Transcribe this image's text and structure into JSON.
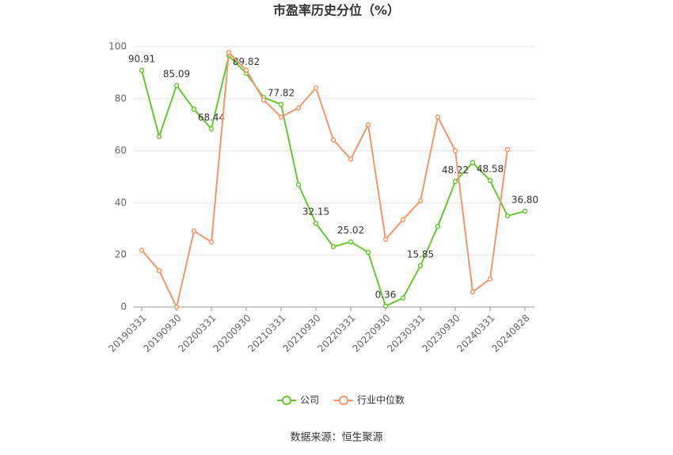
{
  "chart_data": {
    "type": "line",
    "title": "市盈率历史分位（%）",
    "source": "数据来源：恒生聚源",
    "categories": [
      "20190331",
      null,
      "20190930",
      null,
      "20200331",
      null,
      "20200930",
      null,
      "20210331",
      null,
      "20210930",
      null,
      "20220331",
      null,
      "20220930",
      null,
      "20230331",
      null,
      "20230930",
      null,
      "20240331",
      null,
      "20240828"
    ],
    "series": [
      {
        "name": "公司",
        "color": "#66c72f",
        "values": [
          90.91,
          65.5,
          85.09,
          76,
          68.44,
          96.5,
          89.82,
          80.5,
          77.82,
          47,
          32.15,
          23.2,
          25.02,
          21,
          0.36,
          3.5,
          15.85,
          31,
          48.22,
          55.5,
          48.58,
          35,
          36.8
        ],
        "value_labels": [
          "90.91",
          null,
          "85.09",
          null,
          "68.44",
          null,
          "89.82",
          null,
          "77.82",
          null,
          "32.15",
          null,
          "25.02",
          null,
          "0.36",
          null,
          "15.85",
          null,
          "48.22",
          null,
          "48.58",
          null,
          "36.80"
        ]
      },
      {
        "name": "行业中位数",
        "color": "#f4956a",
        "values": [
          21.8,
          14,
          0,
          29.2,
          25,
          97.8,
          91,
          79.5,
          73,
          76.5,
          84.2,
          64.2,
          56.8,
          70,
          26,
          33.6,
          40.8,
          73,
          60,
          5.8,
          10.8,
          60.5,
          null
        ]
      }
    ],
    "ylim": [
      0,
      100
    ],
    "yticks": [
      0,
      20,
      40,
      60,
      80,
      100
    ],
    "grid": true,
    "legend": "bottom"
  }
}
